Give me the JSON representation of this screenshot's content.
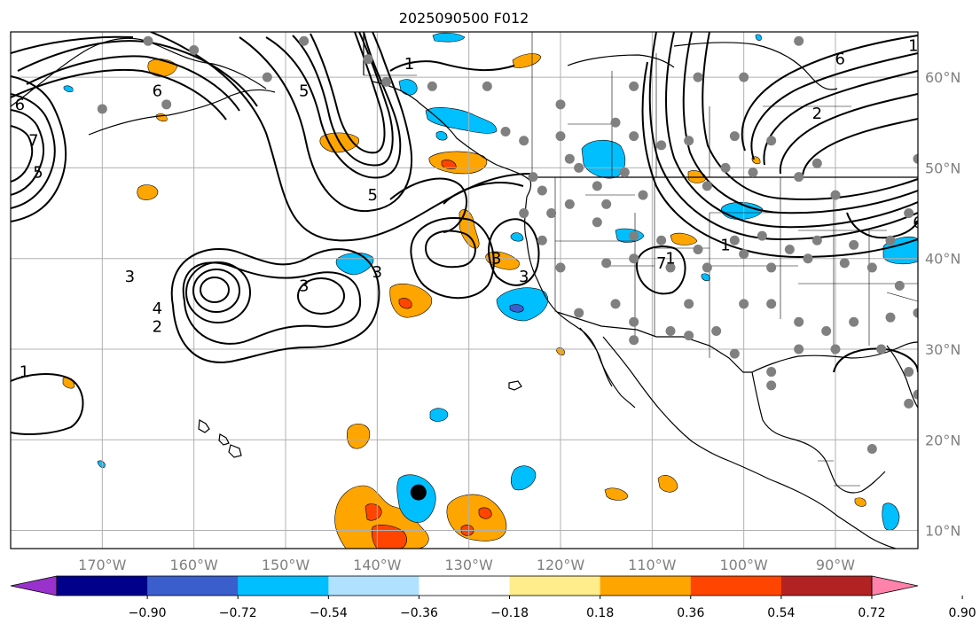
{
  "title": "2025090500 F012",
  "map": {
    "lon_range": [
      -180,
      -81
    ],
    "lat_range": [
      8,
      65
    ],
    "lon_ticks": [
      {
        "lon": -170,
        "label": "170°W"
      },
      {
        "lon": -160,
        "label": "160°W"
      },
      {
        "lon": -150,
        "label": "150°W"
      },
      {
        "lon": -140,
        "label": "140°W"
      },
      {
        "lon": -130,
        "label": "130°W"
      },
      {
        "lon": -120,
        "label": "120°W"
      },
      {
        "lon": -110,
        "label": "110°W"
      },
      {
        "lon": -100,
        "label": "100°W"
      },
      {
        "lon": -90,
        "label": "90°W"
      }
    ],
    "lat_ticks": [
      {
        "lat": 60,
        "label": "60°N"
      },
      {
        "lat": 50,
        "label": "50°N"
      },
      {
        "lat": 40,
        "label": "40°N"
      },
      {
        "lat": 30,
        "label": "30°N"
      },
      {
        "lat": 20,
        "label": "20°N"
      },
      {
        "lat": 10,
        "label": "10°N"
      }
    ],
    "marker": {
      "lon": -135.5,
      "lat": 14.2,
      "color": "#000000"
    },
    "stations": [
      [
        -165,
        64
      ],
      [
        -160,
        63
      ],
      [
        -163,
        57
      ],
      [
        -170,
        56.5
      ],
      [
        -152,
        60
      ],
      [
        -148,
        64
      ],
      [
        -141,
        62
      ],
      [
        -139,
        59.5
      ],
      [
        -134,
        59
      ],
      [
        -128,
        59
      ],
      [
        -120,
        57
      ],
      [
        -112,
        59
      ],
      [
        -105,
        60
      ],
      [
        -100,
        60
      ],
      [
        -94,
        64
      ],
      [
        -126,
        54
      ],
      [
        -120,
        53.5
      ],
      [
        -114,
        55
      ],
      [
        -112,
        53.5
      ],
      [
        -109,
        52.5
      ],
      [
        -106,
        53
      ],
      [
        -101,
        53.5
      ],
      [
        -97,
        53
      ],
      [
        -92,
        50.5
      ],
      [
        -81,
        51
      ],
      [
        -123,
        49
      ],
      [
        -118,
        50
      ],
      [
        -116,
        48
      ],
      [
        -111,
        47
      ],
      [
        -113,
        49.5
      ],
      [
        -104,
        48
      ],
      [
        -102,
        50
      ],
      [
        -99,
        49.5
      ],
      [
        -94,
        49
      ],
      [
        -90,
        47
      ],
      [
        -122,
        47.5
      ],
      [
        -119,
        46
      ],
      [
        -116,
        44
      ],
      [
        -112,
        42.5
      ],
      [
        -109,
        42
      ],
      [
        -105,
        41
      ],
      [
        -101,
        42
      ],
      [
        -98,
        42.5
      ],
      [
        -95,
        41
      ],
      [
        -92,
        42
      ],
      [
        -88,
        41.5
      ],
      [
        -84,
        42
      ],
      [
        -82,
        45
      ],
      [
        -122,
        42
      ],
      [
        -120,
        39
      ],
      [
        -115,
        39.5
      ],
      [
        -112,
        40
      ],
      [
        -108,
        39
      ],
      [
        -104,
        39
      ],
      [
        -100,
        40.5
      ],
      [
        -97,
        39
      ],
      [
        -93,
        40
      ],
      [
        -89,
        39.5
      ],
      [
        -86,
        39
      ],
      [
        -83,
        37
      ],
      [
        -118,
        34
      ],
      [
        -114,
        35
      ],
      [
        -112,
        33
      ],
      [
        -108,
        32
      ],
      [
        -106,
        35
      ],
      [
        -103,
        32
      ],
      [
        -100,
        35
      ],
      [
        -97,
        35
      ],
      [
        -94,
        33
      ],
      [
        -91,
        32
      ],
      [
        -88,
        33
      ],
      [
        -84,
        33.5
      ],
      [
        -81,
        34
      ],
      [
        -112,
        31
      ],
      [
        -106,
        31.5
      ],
      [
        -101,
        29.5
      ],
      [
        -97,
        27.5
      ],
      [
        -97,
        26
      ],
      [
        -94,
        30
      ],
      [
        -90,
        30
      ],
      [
        -85,
        30
      ],
      [
        -82,
        27.5
      ],
      [
        -81,
        25
      ],
      [
        -82,
        24
      ],
      [
        -86,
        19
      ],
      [
        -124,
        45
      ],
      [
        -115,
        46
      ],
      [
        -119,
        51
      ],
      [
        -124,
        53
      ],
      [
        -121,
        45
      ]
    ]
  },
  "contours": [
    {
      "level": "1",
      "lon": -178.5,
      "lat": 27.5
    },
    {
      "level": "1",
      "lon": -136.5,
      "lat": 61.5
    },
    {
      "level": "1",
      "lon": -102,
      "lat": 41.5
    },
    {
      "level": "1",
      "lon": -81.5,
      "lat": 63.5
    },
    {
      "level": "1",
      "lon": -108,
      "lat": 40
    },
    {
      "level": "2",
      "lon": -164,
      "lat": 32.5
    },
    {
      "level": "2",
      "lon": -92,
      "lat": 56
    },
    {
      "level": "3",
      "lon": -140,
      "lat": 38.5
    },
    {
      "level": "3",
      "lon": -148,
      "lat": 37
    },
    {
      "level": "3",
      "lon": -167,
      "lat": 38
    },
    {
      "level": "3",
      "lon": -127,
      "lat": 40
    },
    {
      "level": "3",
      "lon": -124,
      "lat": 38
    },
    {
      "level": "4",
      "lon": -164,
      "lat": 34.5
    },
    {
      "level": "5",
      "lon": -140.5,
      "lat": 47
    },
    {
      "level": "5",
      "lon": -148,
      "lat": 58.5
    },
    {
      "level": "5",
      "lon": -177,
      "lat": 49.5
    },
    {
      "level": "6",
      "lon": -179,
      "lat": 57
    },
    {
      "level": "6",
      "lon": -89.5,
      "lat": 62
    },
    {
      "level": "6",
      "lon": -81,
      "lat": 44
    },
    {
      "level": "6",
      "lon": -164,
      "lat": 58.5
    },
    {
      "level": "7",
      "lon": -177.5,
      "lat": 53
    },
    {
      "level": "7",
      "lon": -109,
      "lat": 39.5
    }
  ],
  "colorbar": {
    "colors": [
      "#9932cc",
      "#00008b",
      "#3a5fcd",
      "#00bfff",
      "#b0e2ff",
      "#ffffff",
      "#ffec8b",
      "#ffa500",
      "#ff4500",
      "#b22222",
      "#ff82ab"
    ],
    "ticks": [
      "−0.90",
      "−0.72",
      "−0.54",
      "−0.36",
      "−0.18",
      "0.18",
      "0.36",
      "0.54",
      "0.72",
      "0.90"
    ]
  }
}
